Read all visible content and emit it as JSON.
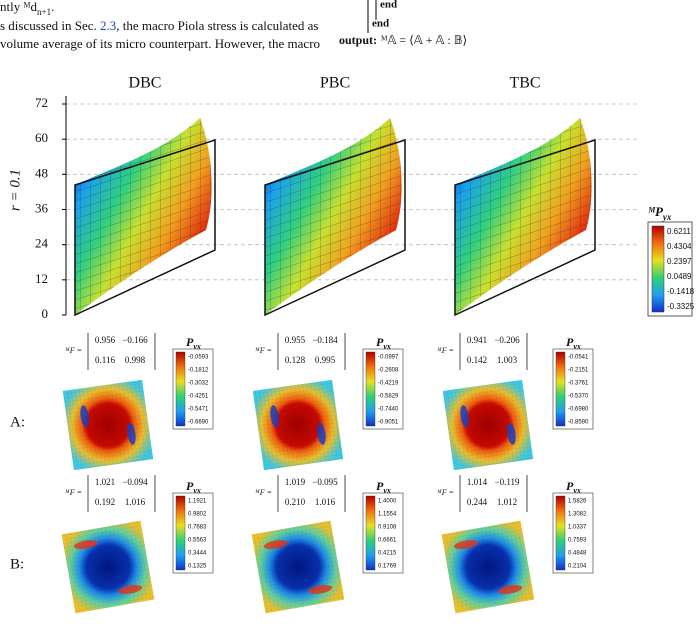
{
  "text_lines": [
    [
      "ntly ᴹd",
      "n+1",
      "."
    ],
    [
      "s discussed in Sec. ",
      "2.3",
      ", the macro Piola stress is calculated as"
    ],
    [
      "volume average of its micro counterpart. However, the macro"
    ]
  ],
  "algorithm": {
    "end_1": "end",
    "end_2": "end",
    "output_label": "output:",
    "output_expr": "ᴹ𝔸 = ⟨𝔸 + 𝔸 : 𝔹⟩"
  },
  "figure": {
    "columns": [
      "DBC",
      "PBC",
      "TBC"
    ],
    "y_label": "r = 0.1",
    "y_ticks": [
      0,
      12,
      24,
      36,
      48,
      60,
      72
    ],
    "colorbar": {
      "title": "ᴹP",
      "subscript": "yx",
      "labels": [
        "0.6211",
        "0.4304",
        "0.2397",
        "0.0489",
        "-0.1418",
        "-0.3325"
      ]
    }
  },
  "rows": [
    {
      "label": "A:",
      "panels": [
        {
          "F_label": "ᴹF =",
          "F": [
            [
              "0.956",
              "−0.166"
            ],
            [
              "0.116",
              "0.998"
            ]
          ],
          "colorbar_title": "P",
          "colorbar_subscript": "yx",
          "colorbar": [
            "-0.0593",
            "-0.1812",
            "-0.3032",
            "-0.4251",
            "-0.5471",
            "-0.6690"
          ]
        },
        {
          "F_label": "ᴹF =",
          "F": [
            [
              "0.955",
              "−0.184"
            ],
            [
              "0.128",
              "0.995"
            ]
          ],
          "colorbar_title": "P",
          "colorbar_subscript": "yx",
          "colorbar": [
            "-0.0997",
            "-0.2608",
            "-0.4219",
            "-0.5829",
            "-0.7440",
            "-0.9051"
          ]
        },
        {
          "F_label": "ᴹF =",
          "F": [
            [
              "0.941",
              "−0.206"
            ],
            [
              "0.142",
              "1.003"
            ]
          ],
          "colorbar_title": "P",
          "colorbar_subscript": "yx",
          "colorbar": [
            "-0.0541",
            "-0.2151",
            "-0.3761",
            "-0.5370",
            "-0.6980",
            "-0.8590"
          ]
        }
      ]
    },
    {
      "label": "B:",
      "panels": [
        {
          "F_label": "ᴹF =",
          "F": [
            [
              "1.021",
              "−0.094"
            ],
            [
              "0.192",
              "1.016"
            ]
          ],
          "colorbar_title": "P",
          "colorbar_subscript": "yx",
          "colorbar": [
            "1.1921",
            "0.9802",
            "0.7683",
            "0.5563",
            "0.3444",
            "0.1325"
          ]
        },
        {
          "F_label": "ᴹF =",
          "F": [
            [
              "1.019",
              "−0.095"
            ],
            [
              "0.210",
              "1.016"
            ]
          ],
          "colorbar_title": "P",
          "colorbar_subscript": "yx",
          "colorbar": [
            "1.4000",
            "1.1554",
            "0.9108",
            "0.6661",
            "0.4215",
            "0.1769"
          ]
        },
        {
          "F_label": "ᴹF =",
          "F": [
            [
              "1.014",
              "−0.119"
            ],
            [
              "0.244",
              "1.012"
            ]
          ],
          "colorbar_title": "P",
          "colorbar_subscript": "yx",
          "colorbar": [
            "1.5826",
            "1.3082",
            "1.0337",
            "0.7593",
            "0.4848",
            "0.2104"
          ]
        }
      ]
    }
  ]
}
